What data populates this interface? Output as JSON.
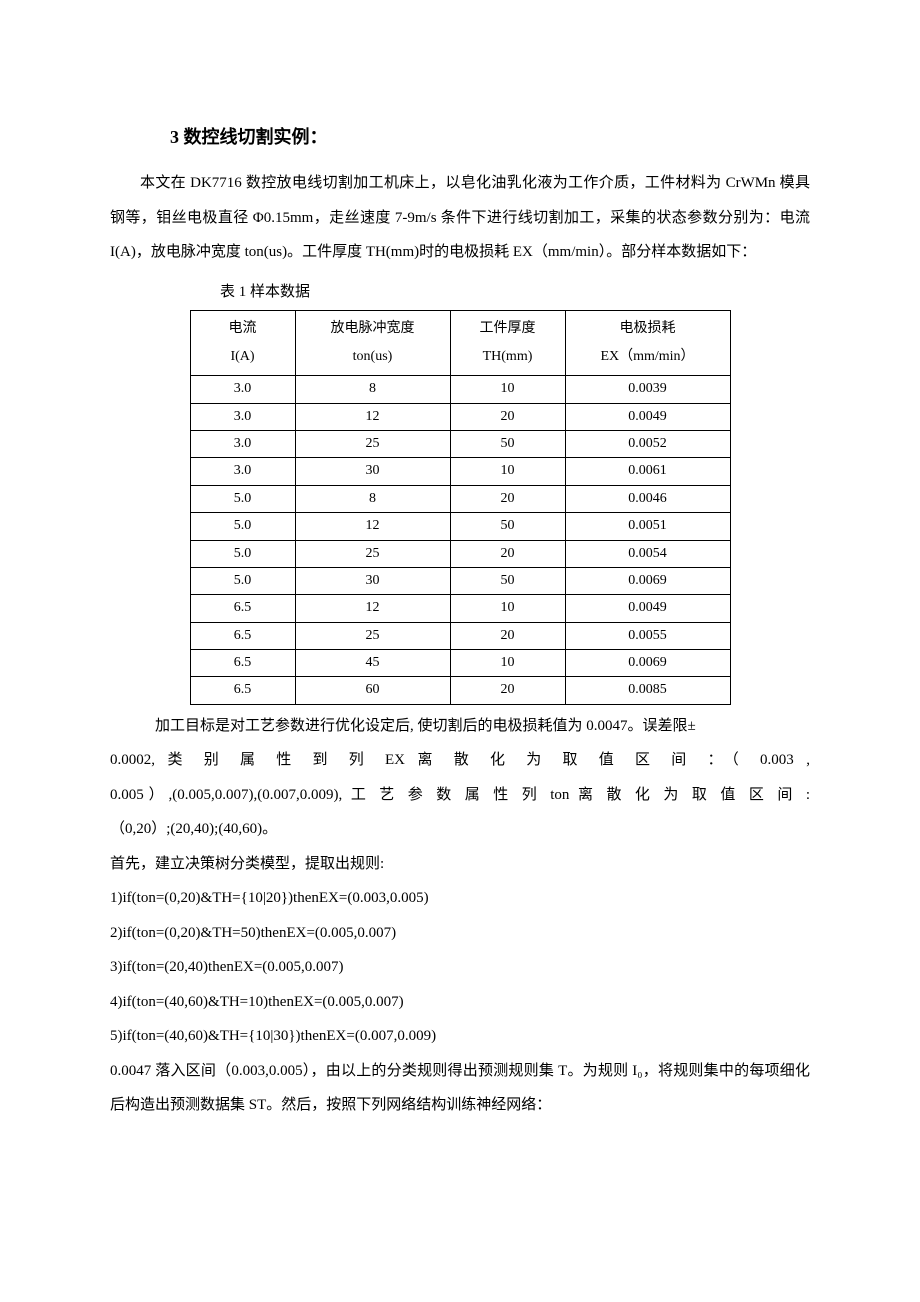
{
  "section_title": "3 数控线切割实例：",
  "intro_para": "本文在 DK7716 数控放电线切割加工机床上，以皂化油乳化液为工作介质，工件材料为 CrWMn 模具钢等，钼丝电极直径 Φ0.15mm，走丝速度 7-9m/s 条件下进行线切割加工，采集的状态参数分别为：电流 I(A)，放电脉冲宽度 ton(us)。工件厚度 TH(mm)时的电极损耗 EX（mm/min）。部分样本数据如下：",
  "table": {
    "caption": "表 1 样本数据",
    "header": {
      "col1_line1": "电流",
      "col1_line2": "I(A)",
      "col2_line1": "放电脉冲宽度",
      "col2_line2": "ton(us)",
      "col3_line1": "工件厚度",
      "col3_line2": "TH(mm)",
      "col4_line1": "电极损耗",
      "col4_line2": "EX（mm/min）"
    },
    "rows": [
      {
        "i": "3.0",
        "ton": "8",
        "th": "10",
        "ex": "0.0039"
      },
      {
        "i": "3.0",
        "ton": "12",
        "th": "20",
        "ex": "0.0049"
      },
      {
        "i": "3.0",
        "ton": "25",
        "th": "50",
        "ex": "0.0052"
      },
      {
        "i": "3.0",
        "ton": "30",
        "th": "10",
        "ex": "0.0061"
      },
      {
        "i": "5.0",
        "ton": "8",
        "th": "20",
        "ex": "0.0046"
      },
      {
        "i": "5.0",
        "ton": "12",
        "th": "50",
        "ex": "0.0051"
      },
      {
        "i": "5.0",
        "ton": "25",
        "th": "20",
        "ex": "0.0054"
      },
      {
        "i": "5.0",
        "ton": "30",
        "th": "50",
        "ex": "0.0069"
      },
      {
        "i": "6.5",
        "ton": "12",
        "th": "10",
        "ex": "0.0049"
      },
      {
        "i": "6.5",
        "ton": "25",
        "th": "20",
        "ex": "0.0055"
      },
      {
        "i": "6.5",
        "ton": "45",
        "th": "10",
        "ex": "0.0069"
      },
      {
        "i": "6.5",
        "ton": "60",
        "th": "20",
        "ex": "0.0085"
      }
    ],
    "col_widths": {
      "i": 80,
      "ton": 130,
      "th": 90,
      "ex": 140
    },
    "border_color": "#000000",
    "background_color": "#ffffff",
    "font_size": 14
  },
  "after_para_line1": "加工目标是对工艺参数进行优化设定后, 使切割后的电极损耗值为 0.0047。误差限±",
  "after_para_line2": "0.0002, 类 别 属 性 到 列 EX 离 散 化 为 取 值 区 间 ：（ 0.003 ,",
  "after_para_line3": "0.005）,(0.005,0.007),(0.007,0.009), 工 艺 参 数 属 性 列 ton 离 散 化 为 取 值 区 间 :",
  "after_para_line4": "（0,20）;(20,40);(40,60)。",
  "rules_intro": "首先，建立决策树分类模型，提取出规则:",
  "rules": [
    "1)if(ton=(0,20)&TH={10|20})thenEX=(0.003,0.005)",
    "2)if(ton=(0,20)&TH=50)thenEX=(0.005,0.007)",
    "3)if(ton=(20,40)thenEX=(0.005,0.007)",
    "4)if(ton=(40,60)&TH=10)thenEX=(0.005,0.007)",
    "5)if(ton=(40,60)&TH={10|30})thenEX=(0.007,0.009)"
  ],
  "conclusion": "0.0047 落入区间（0.003,0.005），由以上的分类规则得出预测规则集 T。为规则 I₀，将规则集中的每项细化后构造出预测数据集 ST。然后，按照下列网络结构训练神经网络："
}
